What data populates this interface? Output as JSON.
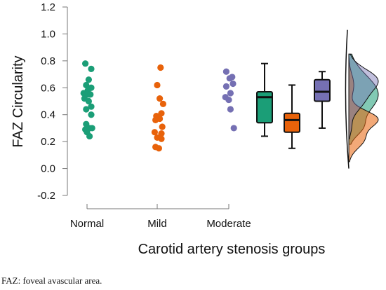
{
  "caption": "FAZ: foveal avascular area.",
  "chart_data": {
    "type": "scatter",
    "subtype": "raincloud (strip + box + half-violin)",
    "ylabel": "FAZ Circularity",
    "xlabel": "Carotid artery stenosis groups",
    "ylim": [
      -0.2,
      1.2
    ],
    "yticks": [
      -0.2,
      0.0,
      0.2,
      0.4,
      0.6,
      0.8,
      1.0,
      1.2
    ],
    "ytick_labels": [
      "-0.2",
      "0.0",
      "0.2",
      "0.4",
      "0.6",
      "0.8",
      "1.0",
      "1.2"
    ],
    "categories": [
      "Normal",
      "Mild",
      "Moderate"
    ],
    "colors": {
      "Normal": "#1b9e77",
      "Mild": "#e8620a",
      "Moderate": "#7570b3"
    },
    "grid": false,
    "legend": "none",
    "series": [
      {
        "name": "Normal",
        "points": [
          {
            "x": -0.02,
            "y": 0.78
          },
          {
            "x": 0.05,
            "y": 0.74
          },
          {
            "x": 0.02,
            "y": 0.66
          },
          {
            "x": -0.01,
            "y": 0.62
          },
          {
            "x": 0.05,
            "y": 0.6
          },
          {
            "x": 0.01,
            "y": 0.58
          },
          {
            "x": -0.04,
            "y": 0.56
          },
          {
            "x": 0.02,
            "y": 0.55
          },
          {
            "x": -0.02,
            "y": 0.55
          },
          {
            "x": 0.04,
            "y": 0.55
          },
          {
            "x": -0.03,
            "y": 0.52
          },
          {
            "x": 0.02,
            "y": 0.5
          },
          {
            "x": 0.05,
            "y": 0.46
          },
          {
            "x": -0.01,
            "y": 0.44
          },
          {
            "x": 0.05,
            "y": 0.4
          },
          {
            "x": -0.01,
            "y": 0.33
          },
          {
            "x": 0.03,
            "y": 0.3
          },
          {
            "x": 0.06,
            "y": 0.3
          },
          {
            "x": -0.02,
            "y": 0.29
          },
          {
            "x": 0.0,
            "y": 0.27
          },
          {
            "x": 0.03,
            "y": 0.24
          }
        ],
        "box": {
          "min": 0.24,
          "q1": 0.34,
          "median": 0.53,
          "q3": 0.57,
          "max": 0.78
        }
      },
      {
        "name": "Mild",
        "points": [
          {
            "x": 0.04,
            "y": 0.75
          },
          {
            "x": 0.0,
            "y": 0.62
          },
          {
            "x": 0.03,
            "y": 0.52
          },
          {
            "x": 0.07,
            "y": 0.48
          },
          {
            "x": 0.05,
            "y": 0.41
          },
          {
            "x": -0.01,
            "y": 0.39
          },
          {
            "x": 0.03,
            "y": 0.37
          },
          {
            "x": -0.02,
            "y": 0.36
          },
          {
            "x": 0.06,
            "y": 0.31
          },
          {
            "x": -0.03,
            "y": 0.27
          },
          {
            "x": 0.05,
            "y": 0.26
          },
          {
            "x": 0.0,
            "y": 0.23
          },
          {
            "x": 0.05,
            "y": 0.22
          },
          {
            "x": -0.02,
            "y": 0.16
          },
          {
            "x": 0.02,
            "y": 0.15
          }
        ],
        "box": {
          "min": 0.15,
          "q1": 0.27,
          "median": 0.36,
          "q3": 0.41,
          "max": 0.62
        }
      },
      {
        "name": "Moderate",
        "points": [
          {
            "x": -0.03,
            "y": 0.72
          },
          {
            "x": 0.04,
            "y": 0.68
          },
          {
            "x": 0.01,
            "y": 0.67
          },
          {
            "x": 0.05,
            "y": 0.63
          },
          {
            "x": -0.03,
            "y": 0.61
          },
          {
            "x": 0.02,
            "y": 0.56
          },
          {
            "x": -0.04,
            "y": 0.53
          },
          {
            "x": 0.0,
            "y": 0.51
          },
          {
            "x": 0.02,
            "y": 0.44
          },
          {
            "x": 0.06,
            "y": 0.3
          }
        ],
        "box": {
          "min": 0.3,
          "q1": 0.5,
          "median": 0.57,
          "q3": 0.66,
          "max": 0.72
        }
      }
    ],
    "density": [
      {
        "name": "Normal",
        "peaks": [
          0.55
        ],
        "range": [
          0.18,
          0.85
        ]
      },
      {
        "name": "Mild",
        "peaks": [
          0.37,
          0.22
        ],
        "range": [
          0.05,
          0.82
        ]
      },
      {
        "name": "Moderate",
        "peaks": [
          0.66
        ],
        "range": [
          0.22,
          0.85
        ]
      }
    ]
  }
}
